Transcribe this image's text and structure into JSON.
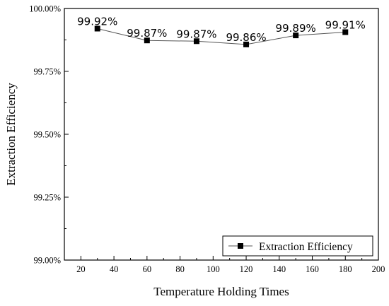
{
  "chart_data": {
    "type": "line",
    "x": [
      30,
      60,
      90,
      120,
      150,
      180
    ],
    "series": [
      {
        "name": "Extraction Efficiency",
        "values": [
          99.92,
          99.873,
          99.87,
          99.857,
          99.893,
          99.906
        ],
        "labels": [
          "99.92%",
          "99.87%",
          "99.87%",
          "99.86%",
          "99.89%",
          "99.91%"
        ]
      }
    ],
    "xlabel": "Temperature Holding Times",
    "ylabel": "Extraction Efficiency",
    "xlim": [
      10,
      200
    ],
    "ylim": [
      99.0,
      100.0
    ],
    "x_ticks": [
      20,
      40,
      60,
      80,
      100,
      120,
      140,
      160,
      180,
      200
    ],
    "x_tick_labels": [
      "20",
      "40",
      "60",
      "80",
      "100",
      "120",
      "140",
      "160",
      "180",
      "200"
    ],
    "y_ticks": [
      99.0,
      99.25,
      99.5,
      99.75,
      100.0
    ],
    "y_tick_labels": [
      "99.00%",
      "99.25%",
      "99.50%",
      "99.75%",
      "100.00%"
    ],
    "grid": false,
    "legend_position": "bottom-right",
    "colors": {
      "line": "#555555",
      "marker": "#000000",
      "axes": "#000000"
    }
  }
}
